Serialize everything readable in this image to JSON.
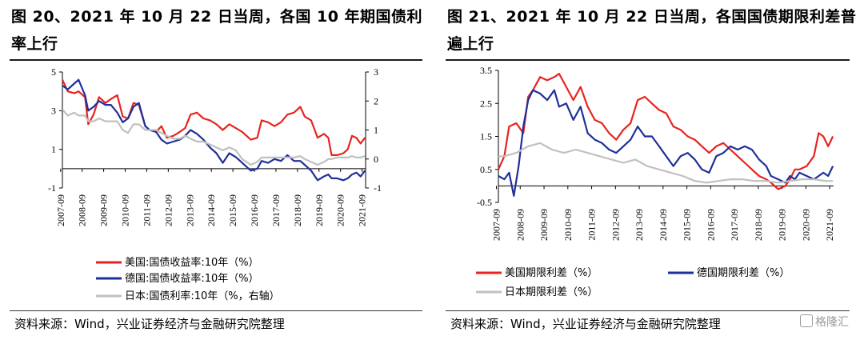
{
  "figures": [
    {
      "title": "图 20、2021 年 10 月 22 日当周，各国 10 年期国债利率上行",
      "source": "资料来源：Wind，兴业证券经济与金融研究院整理"
    },
    {
      "title": "图 21、2021 年 10 月 22 日当周，各国国债期限利差普遍上行",
      "source": "资料来源：Wind，兴业证券经济与金融研究院整理"
    }
  ],
  "watermark": "格隆汇",
  "colors": {
    "red": "#e8231f",
    "blue": "#1f2f9a",
    "gray": "#c0c0c0",
    "axis": "#000000"
  },
  "chart_data": [
    {
      "type": "line",
      "title": "图 20、2021 年 10 月 22 日当周，各国 10 年期国债利率上行",
      "x_ticks": [
        "2007-09",
        "2008-09",
        "2009-09",
        "2010-09",
        "2011-09",
        "2012-09",
        "2013-09",
        "2014-09",
        "2015-09",
        "2016-09",
        "2017-09",
        "2018-09",
        "2019-09",
        "2020-09",
        "2021-09"
      ],
      "x_range": [
        2007.75,
        2021.83
      ],
      "y_left_ticks": [
        "-1",
        "1",
        "3",
        "5"
      ],
      "y_left_range": [
        -1,
        5
      ],
      "y_right_ticks": [
        "-1",
        "0",
        "1",
        "2",
        "3"
      ],
      "y_right_range": [
        -1,
        3
      ],
      "legend_placement": "bottom",
      "series": [
        {
          "name": "美国:国债收益率:10年（%）",
          "color": "#e8231f",
          "axis": "left",
          "x": [
            2007.75,
            2008.0,
            2008.3,
            2008.5,
            2008.8,
            2008.95,
            2009.2,
            2009.45,
            2009.75,
            2010.0,
            2010.3,
            2010.55,
            2010.8,
            2011.05,
            2011.3,
            2011.6,
            2011.8,
            2012.1,
            2012.35,
            2012.6,
            2012.9,
            2013.2,
            2013.45,
            2013.7,
            2014.0,
            2014.3,
            2014.6,
            2014.9,
            2015.2,
            2015.5,
            2015.8,
            2016.1,
            2016.5,
            2016.8,
            2017.0,
            2017.3,
            2017.6,
            2017.9,
            2018.2,
            2018.5,
            2018.8,
            2019.0,
            2019.3,
            2019.6,
            2019.9,
            2020.1,
            2020.25,
            2020.5,
            2020.8,
            2021.0,
            2021.2,
            2021.4,
            2021.6,
            2021.8
          ],
          "y": [
            4.6,
            4.0,
            3.9,
            4.0,
            3.7,
            2.3,
            2.8,
            3.7,
            3.4,
            3.6,
            3.8,
            2.7,
            2.6,
            3.4,
            3.3,
            2.2,
            2.0,
            1.9,
            2.2,
            1.6,
            1.7,
            1.9,
            2.1,
            2.8,
            2.9,
            2.6,
            2.5,
            2.3,
            2.0,
            2.3,
            2.1,
            1.9,
            1.5,
            1.6,
            2.5,
            2.4,
            2.2,
            2.4,
            2.8,
            2.9,
            3.2,
            2.7,
            2.5,
            1.6,
            1.8,
            1.6,
            0.7,
            0.7,
            0.8,
            1.0,
            1.7,
            1.6,
            1.3,
            1.6
          ]
        },
        {
          "name": "德国:国债收益率:10年（%）",
          "color": "#1f2f9a",
          "axis": "left",
          "x": [
            2007.75,
            2008.0,
            2008.3,
            2008.5,
            2008.8,
            2008.95,
            2009.2,
            2009.45,
            2009.75,
            2010.0,
            2010.3,
            2010.55,
            2010.8,
            2011.05,
            2011.3,
            2011.6,
            2011.8,
            2012.1,
            2012.35,
            2012.6,
            2012.9,
            2013.2,
            2013.45,
            2013.7,
            2014.0,
            2014.3,
            2014.6,
            2014.9,
            2015.2,
            2015.5,
            2015.8,
            2016.1,
            2016.5,
            2016.8,
            2017.0,
            2017.3,
            2017.6,
            2017.9,
            2018.2,
            2018.5,
            2018.8,
            2019.0,
            2019.3,
            2019.6,
            2019.9,
            2020.1,
            2020.25,
            2020.5,
            2020.8,
            2021.0,
            2021.2,
            2021.4,
            2021.6,
            2021.8
          ],
          "y": [
            4.3,
            4.1,
            4.4,
            4.6,
            3.8,
            3.0,
            3.2,
            3.5,
            3.3,
            3.3,
            2.9,
            2.4,
            2.6,
            3.2,
            3.4,
            2.2,
            2.0,
            1.9,
            1.5,
            1.3,
            1.4,
            1.5,
            1.7,
            2.0,
            1.8,
            1.5,
            1.1,
            0.8,
            0.3,
            0.8,
            0.6,
            0.3,
            -0.1,
            0.0,
            0.4,
            0.3,
            0.5,
            0.4,
            0.7,
            0.4,
            0.4,
            0.2,
            -0.1,
            -0.6,
            -0.4,
            -0.3,
            -0.5,
            -0.5,
            -0.6,
            -0.5,
            -0.3,
            -0.2,
            -0.4,
            -0.1
          ]
        },
        {
          "name": "日本:国债利率:10年（%，右轴）",
          "color": "#c0c0c0",
          "axis": "right",
          "x": [
            2007.75,
            2008.0,
            2008.3,
            2008.5,
            2008.8,
            2008.95,
            2009.2,
            2009.45,
            2009.75,
            2010.0,
            2010.3,
            2010.55,
            2010.8,
            2011.05,
            2011.3,
            2011.6,
            2011.8,
            2012.1,
            2012.35,
            2012.6,
            2012.9,
            2013.2,
            2013.45,
            2013.7,
            2014.0,
            2014.3,
            2014.6,
            2014.9,
            2015.2,
            2015.5,
            2015.8,
            2016.1,
            2016.5,
            2016.8,
            2017.0,
            2017.3,
            2017.6,
            2017.9,
            2018.2,
            2018.5,
            2018.8,
            2019.0,
            2019.3,
            2019.6,
            2019.9,
            2020.1,
            2020.25,
            2020.5,
            2020.8,
            2021.0,
            2021.2,
            2021.4,
            2021.6,
            2021.8
          ],
          "y": [
            1.7,
            1.5,
            1.6,
            1.5,
            1.5,
            1.3,
            1.3,
            1.4,
            1.3,
            1.3,
            1.3,
            1.0,
            0.9,
            1.2,
            1.2,
            1.0,
            1.0,
            1.0,
            0.9,
            0.8,
            0.7,
            0.7,
            0.8,
            0.7,
            0.6,
            0.6,
            0.5,
            0.4,
            0.3,
            0.4,
            0.3,
            0.0,
            -0.2,
            -0.1,
            0.05,
            0.05,
            0.05,
            0.05,
            0.05,
            0.05,
            0.1,
            0.0,
            -0.1,
            -0.2,
            -0.1,
            0.0,
            0.0,
            0.05,
            0.05,
            0.05,
            0.1,
            0.05,
            0.05,
            0.1
          ]
        }
      ]
    },
    {
      "type": "line",
      "title": "图 21、2021 年 10 月 22 日当周，各国国债期限利差普遍上行",
      "x_ticks": [
        "2007-09",
        "2008-09",
        "2009-09",
        "2010-09",
        "2011-09",
        "2012-09",
        "2013-09",
        "2014-09",
        "2015-09",
        "2016-09",
        "2017-09",
        "2018-09",
        "2019-09",
        "2020-09",
        "2021-09"
      ],
      "x_range": [
        2007.75,
        2021.83
      ],
      "y_ticks": [
        "-0.5",
        "0.5",
        "1.5",
        "2.5",
        "3.5"
      ],
      "y_range": [
        -0.5,
        3.5
      ],
      "legend_placement": "bottom",
      "series": [
        {
          "name": "美国期限利差（%）",
          "color": "#e8231f",
          "x": [
            2007.75,
            2008.0,
            2008.2,
            2008.5,
            2008.8,
            2009.0,
            2009.2,
            2009.5,
            2009.8,
            2010.1,
            2010.3,
            2010.6,
            2010.9,
            2011.2,
            2011.5,
            2011.8,
            2012.1,
            2012.4,
            2012.7,
            2013.0,
            2013.3,
            2013.6,
            2013.9,
            2014.2,
            2014.5,
            2014.8,
            2015.1,
            2015.4,
            2015.7,
            2016.0,
            2016.3,
            2016.6,
            2016.9,
            2017.2,
            2017.5,
            2017.8,
            2018.1,
            2018.4,
            2018.7,
            2019.0,
            2019.2,
            2019.5,
            2019.8,
            2020.0,
            2020.2,
            2020.4,
            2020.7,
            2021.0,
            2021.2,
            2021.4,
            2021.6,
            2021.8
          ],
          "y": [
            0.5,
            0.9,
            1.8,
            1.9,
            1.6,
            2.7,
            2.9,
            3.3,
            3.2,
            3.3,
            3.4,
            3.0,
            2.6,
            3.0,
            2.4,
            2.0,
            1.9,
            1.6,
            1.4,
            1.7,
            1.9,
            2.6,
            2.7,
            2.5,
            2.3,
            2.2,
            1.8,
            1.7,
            1.5,
            1.4,
            1.2,
            1.0,
            1.2,
            1.3,
            1.1,
            0.9,
            0.7,
            0.5,
            0.3,
            0.2,
            0.1,
            -0.1,
            0.0,
            0.2,
            0.5,
            0.5,
            0.6,
            0.9,
            1.6,
            1.5,
            1.2,
            1.5
          ]
        },
        {
          "name": "德国期限利差（%）",
          "color": "#1f2f9a",
          "x": [
            2007.75,
            2008.0,
            2008.2,
            2008.4,
            2008.6,
            2008.8,
            2009.0,
            2009.2,
            2009.5,
            2009.8,
            2010.1,
            2010.3,
            2010.6,
            2010.9,
            2011.2,
            2011.5,
            2011.8,
            2012.1,
            2012.4,
            2012.7,
            2013.0,
            2013.3,
            2013.6,
            2013.9,
            2014.2,
            2014.5,
            2014.8,
            2015.1,
            2015.4,
            2015.7,
            2016.0,
            2016.3,
            2016.6,
            2016.9,
            2017.2,
            2017.5,
            2017.8,
            2018.1,
            2018.4,
            2018.7,
            2019.0,
            2019.2,
            2019.5,
            2019.8,
            2020.0,
            2020.2,
            2020.4,
            2020.7,
            2021.0,
            2021.2,
            2021.4,
            2021.6,
            2021.8
          ],
          "y": [
            0.3,
            0.2,
            0.4,
            -0.3,
            0.6,
            1.8,
            2.6,
            2.9,
            2.8,
            2.6,
            2.9,
            2.4,
            2.5,
            2.0,
            2.4,
            1.6,
            1.4,
            1.3,
            1.1,
            1.0,
            1.2,
            1.4,
            1.8,
            1.5,
            1.5,
            1.2,
            0.9,
            0.6,
            0.9,
            1.0,
            0.8,
            0.5,
            0.4,
            0.9,
            1.0,
            1.2,
            1.1,
            1.2,
            1.1,
            0.8,
            0.6,
            0.3,
            0.2,
            0.1,
            0.3,
            0.2,
            0.4,
            0.3,
            0.2,
            0.3,
            0.4,
            0.3,
            0.6
          ]
        },
        {
          "name": "日本期限利差（%）",
          "color": "#c0c0c0",
          "x": [
            2007.75,
            2008.0,
            2008.5,
            2009.0,
            2009.5,
            2010.0,
            2010.5,
            2011.0,
            2011.5,
            2012.0,
            2012.5,
            2013.0,
            2013.5,
            2014.0,
            2014.5,
            2015.0,
            2015.5,
            2016.0,
            2016.5,
            2017.0,
            2017.5,
            2018.0,
            2018.5,
            2019.0,
            2019.5,
            2020.0,
            2020.5,
            2021.0,
            2021.5,
            2021.8
          ],
          "y": [
            0.9,
            0.9,
            1.0,
            1.2,
            1.3,
            1.1,
            1.0,
            1.1,
            1.0,
            0.9,
            0.8,
            0.7,
            0.8,
            0.6,
            0.5,
            0.4,
            0.3,
            0.15,
            0.1,
            0.15,
            0.2,
            0.2,
            0.15,
            0.15,
            0.1,
            0.15,
            0.2,
            0.2,
            0.15,
            0.15
          ]
        }
      ]
    }
  ]
}
